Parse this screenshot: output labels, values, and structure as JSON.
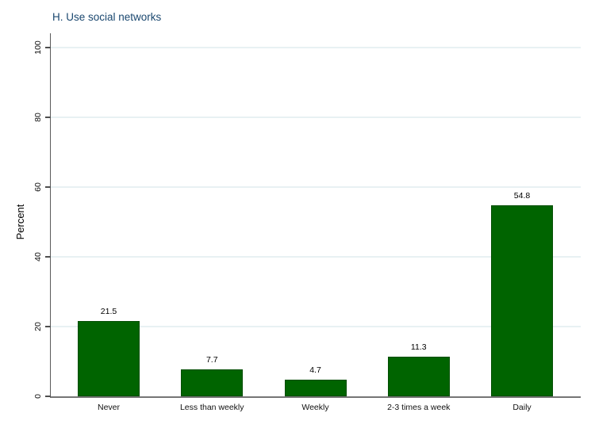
{
  "chart_data": {
    "type": "bar",
    "title": "H. Use social networks",
    "categories": [
      "Never",
      "Less than weekly",
      "Weekly",
      "2-3 times a week",
      "Daily"
    ],
    "values": [
      21.5,
      7.7,
      4.7,
      11.3,
      54.8
    ],
    "value_labels": [
      "21.5",
      "7.7",
      "4.7",
      "11.3",
      "54.8"
    ],
    "xlabel": "",
    "ylabel": "Percent",
    "ylim": [
      0,
      100
    ],
    "yticks": [
      0,
      20,
      40,
      60,
      80,
      100
    ],
    "grid": true,
    "legend": false
  },
  "colors": {
    "bar_fill": "#006400",
    "bar_border": "#024d02",
    "gridline": "#e8f1f3",
    "axis": "#5a5a5a",
    "title_text": "#1a476f",
    "tick_text": "#111111"
  }
}
